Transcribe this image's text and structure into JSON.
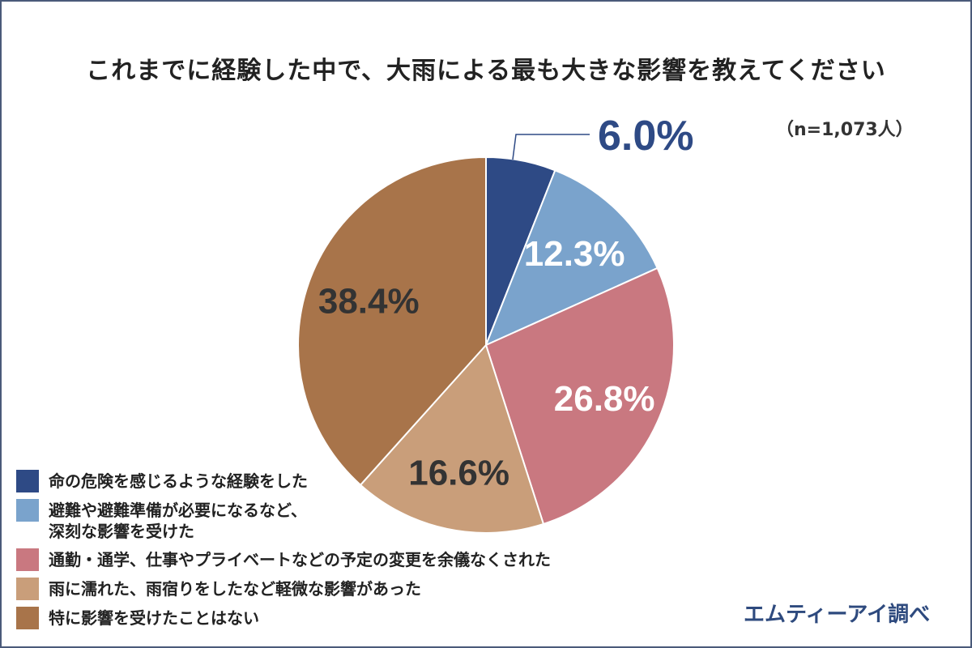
{
  "title": "これまでに経験した中で、大雨による最も大きな影響を教えてください",
  "sample": "（n=1,073人）",
  "source": "エムティーアイ調べ",
  "chart_data": {
    "type": "pie",
    "title": "これまでに経験した中で、大雨による最も大きな影響を教えてください",
    "slices": [
      {
        "label": "命の危険を感じるような経験をした",
        "value": 6.0,
        "display": "6.0%",
        "color": "#2e4a85",
        "label_color": "#2e4a85"
      },
      {
        "label": "避難や避難準備が必要になるなど、\n深刻な影響を受けた",
        "value": 12.3,
        "display": "12.3%",
        "color": "#7aa3cc",
        "label_color": "#ffffff"
      },
      {
        "label": "通勤・通学、仕事やプライベートなどの予定の変更を余儀なくされた",
        "value": 26.8,
        "display": "26.8%",
        "color": "#c97880",
        "label_color": "#ffffff"
      },
      {
        "label": "雨に濡れた、雨宿りをしたなど軽微な影響があった",
        "value": 16.6,
        "display": "16.6%",
        "color": "#c99e7a",
        "label_color": "#333333"
      },
      {
        "label": "特に影響を受けたことはない",
        "value": 38.4,
        "display": "38.4%",
        "color": "#a8744a",
        "label_color": "#333333"
      }
    ],
    "start_angle": "12 o'clock",
    "direction": "clockwise",
    "legend_position": "bottom-left"
  }
}
